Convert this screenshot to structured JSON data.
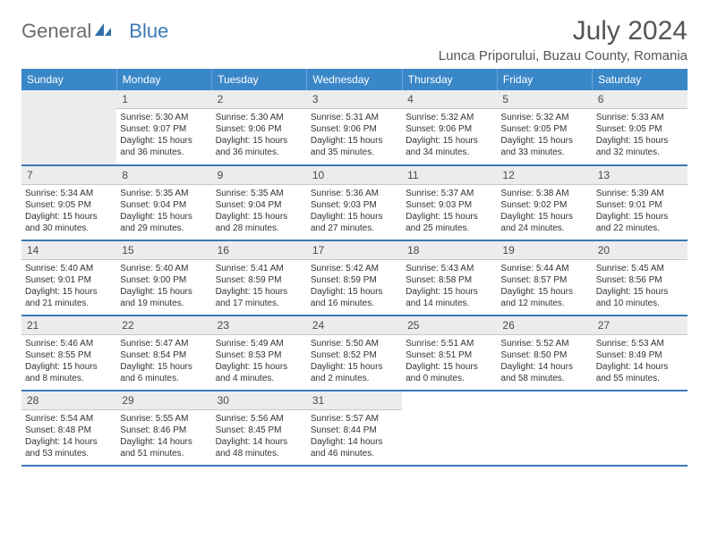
{
  "brand": {
    "word1": "General",
    "word2": "Blue"
  },
  "title": "July 2024",
  "location": "Lunca Priporului, Buzau County, Romania",
  "colors": {
    "header_bg": "#3a87c8",
    "header_text": "#ffffff",
    "rule": "#3a7ab8",
    "daynum_bg": "#ececec",
    "body_text": "#333333",
    "title_text": "#555555"
  },
  "dayNames": [
    "Sunday",
    "Monday",
    "Tuesday",
    "Wednesday",
    "Thursday",
    "Friday",
    "Saturday"
  ],
  "weeks": [
    [
      null,
      {
        "n": "1",
        "sr": "Sunrise: 5:30 AM",
        "ss": "Sunset: 9:07 PM",
        "d1": "Daylight: 15 hours",
        "d2": "and 36 minutes."
      },
      {
        "n": "2",
        "sr": "Sunrise: 5:30 AM",
        "ss": "Sunset: 9:06 PM",
        "d1": "Daylight: 15 hours",
        "d2": "and 36 minutes."
      },
      {
        "n": "3",
        "sr": "Sunrise: 5:31 AM",
        "ss": "Sunset: 9:06 PM",
        "d1": "Daylight: 15 hours",
        "d2": "and 35 minutes."
      },
      {
        "n": "4",
        "sr": "Sunrise: 5:32 AM",
        "ss": "Sunset: 9:06 PM",
        "d1": "Daylight: 15 hours",
        "d2": "and 34 minutes."
      },
      {
        "n": "5",
        "sr": "Sunrise: 5:32 AM",
        "ss": "Sunset: 9:05 PM",
        "d1": "Daylight: 15 hours",
        "d2": "and 33 minutes."
      },
      {
        "n": "6",
        "sr": "Sunrise: 5:33 AM",
        "ss": "Sunset: 9:05 PM",
        "d1": "Daylight: 15 hours",
        "d2": "and 32 minutes."
      }
    ],
    [
      {
        "n": "7",
        "sr": "Sunrise: 5:34 AM",
        "ss": "Sunset: 9:05 PM",
        "d1": "Daylight: 15 hours",
        "d2": "and 30 minutes."
      },
      {
        "n": "8",
        "sr": "Sunrise: 5:35 AM",
        "ss": "Sunset: 9:04 PM",
        "d1": "Daylight: 15 hours",
        "d2": "and 29 minutes."
      },
      {
        "n": "9",
        "sr": "Sunrise: 5:35 AM",
        "ss": "Sunset: 9:04 PM",
        "d1": "Daylight: 15 hours",
        "d2": "and 28 minutes."
      },
      {
        "n": "10",
        "sr": "Sunrise: 5:36 AM",
        "ss": "Sunset: 9:03 PM",
        "d1": "Daylight: 15 hours",
        "d2": "and 27 minutes."
      },
      {
        "n": "11",
        "sr": "Sunrise: 5:37 AM",
        "ss": "Sunset: 9:03 PM",
        "d1": "Daylight: 15 hours",
        "d2": "and 25 minutes."
      },
      {
        "n": "12",
        "sr": "Sunrise: 5:38 AM",
        "ss": "Sunset: 9:02 PM",
        "d1": "Daylight: 15 hours",
        "d2": "and 24 minutes."
      },
      {
        "n": "13",
        "sr": "Sunrise: 5:39 AM",
        "ss": "Sunset: 9:01 PM",
        "d1": "Daylight: 15 hours",
        "d2": "and 22 minutes."
      }
    ],
    [
      {
        "n": "14",
        "sr": "Sunrise: 5:40 AM",
        "ss": "Sunset: 9:01 PM",
        "d1": "Daylight: 15 hours",
        "d2": "and 21 minutes."
      },
      {
        "n": "15",
        "sr": "Sunrise: 5:40 AM",
        "ss": "Sunset: 9:00 PM",
        "d1": "Daylight: 15 hours",
        "d2": "and 19 minutes."
      },
      {
        "n": "16",
        "sr": "Sunrise: 5:41 AM",
        "ss": "Sunset: 8:59 PM",
        "d1": "Daylight: 15 hours",
        "d2": "and 17 minutes."
      },
      {
        "n": "17",
        "sr": "Sunrise: 5:42 AM",
        "ss": "Sunset: 8:59 PM",
        "d1": "Daylight: 15 hours",
        "d2": "and 16 minutes."
      },
      {
        "n": "18",
        "sr": "Sunrise: 5:43 AM",
        "ss": "Sunset: 8:58 PM",
        "d1": "Daylight: 15 hours",
        "d2": "and 14 minutes."
      },
      {
        "n": "19",
        "sr": "Sunrise: 5:44 AM",
        "ss": "Sunset: 8:57 PM",
        "d1": "Daylight: 15 hours",
        "d2": "and 12 minutes."
      },
      {
        "n": "20",
        "sr": "Sunrise: 5:45 AM",
        "ss": "Sunset: 8:56 PM",
        "d1": "Daylight: 15 hours",
        "d2": "and 10 minutes."
      }
    ],
    [
      {
        "n": "21",
        "sr": "Sunrise: 5:46 AM",
        "ss": "Sunset: 8:55 PM",
        "d1": "Daylight: 15 hours",
        "d2": "and 8 minutes."
      },
      {
        "n": "22",
        "sr": "Sunrise: 5:47 AM",
        "ss": "Sunset: 8:54 PM",
        "d1": "Daylight: 15 hours",
        "d2": "and 6 minutes."
      },
      {
        "n": "23",
        "sr": "Sunrise: 5:49 AM",
        "ss": "Sunset: 8:53 PM",
        "d1": "Daylight: 15 hours",
        "d2": "and 4 minutes."
      },
      {
        "n": "24",
        "sr": "Sunrise: 5:50 AM",
        "ss": "Sunset: 8:52 PM",
        "d1": "Daylight: 15 hours",
        "d2": "and 2 minutes."
      },
      {
        "n": "25",
        "sr": "Sunrise: 5:51 AM",
        "ss": "Sunset: 8:51 PM",
        "d1": "Daylight: 15 hours",
        "d2": "and 0 minutes."
      },
      {
        "n": "26",
        "sr": "Sunrise: 5:52 AM",
        "ss": "Sunset: 8:50 PM",
        "d1": "Daylight: 14 hours",
        "d2": "and 58 minutes."
      },
      {
        "n": "27",
        "sr": "Sunrise: 5:53 AM",
        "ss": "Sunset: 8:49 PM",
        "d1": "Daylight: 14 hours",
        "d2": "and 55 minutes."
      }
    ],
    [
      {
        "n": "28",
        "sr": "Sunrise: 5:54 AM",
        "ss": "Sunset: 8:48 PM",
        "d1": "Daylight: 14 hours",
        "d2": "and 53 minutes."
      },
      {
        "n": "29",
        "sr": "Sunrise: 5:55 AM",
        "ss": "Sunset: 8:46 PM",
        "d1": "Daylight: 14 hours",
        "d2": "and 51 minutes."
      },
      {
        "n": "30",
        "sr": "Sunrise: 5:56 AM",
        "ss": "Sunset: 8:45 PM",
        "d1": "Daylight: 14 hours",
        "d2": "and 48 minutes."
      },
      {
        "n": "31",
        "sr": "Sunrise: 5:57 AM",
        "ss": "Sunset: 8:44 PM",
        "d1": "Daylight: 14 hours",
        "d2": "and 46 minutes."
      },
      null,
      null,
      null
    ]
  ]
}
